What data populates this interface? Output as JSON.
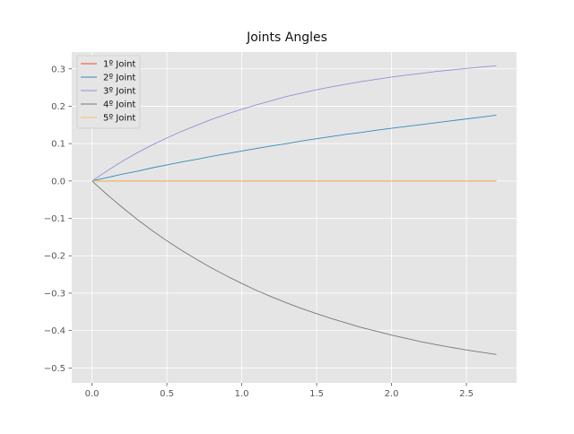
{
  "chart_data": {
    "type": "line",
    "title": "Joints Angles",
    "xlabel": "",
    "ylabel": "",
    "xlim": [
      -0.135,
      2.835
    ],
    "ylim": [
      -0.54,
      0.345
    ],
    "xticks": [
      0.0,
      0.5,
      1.0,
      1.5,
      2.0,
      2.5
    ],
    "xtick_labels": [
      "0.0",
      "0.5",
      "1.0",
      "1.5",
      "2.0",
      "2.5"
    ],
    "yticks": [
      -0.5,
      -0.4,
      -0.3,
      -0.2,
      -0.1,
      0.0,
      0.1,
      0.2,
      0.3
    ],
    "ytick_labels": [
      "−0.5",
      "−0.4",
      "−0.3",
      "−0.2",
      "−0.1",
      "0.0",
      "0.1",
      "0.2",
      "0.3"
    ],
    "grid": true,
    "legend_position": "top-left",
    "x": [
      0.0,
      0.1,
      0.2,
      0.3,
      0.4,
      0.5,
      0.6,
      0.7,
      0.8,
      0.9,
      1.0,
      1.1,
      1.2,
      1.3,
      1.4,
      1.5,
      1.6,
      1.7,
      1.8,
      1.9,
      2.0,
      2.1,
      2.2,
      2.3,
      2.4,
      2.5,
      2.6,
      2.7
    ],
    "series": [
      {
        "name": "1º Joint",
        "color": "#e24a33",
        "values": [
          0.0,
          0.0,
          0.0,
          0.0,
          0.0,
          0.0,
          0.0,
          0.0,
          0.0,
          0.0,
          0.0,
          0.0,
          0.0,
          0.0,
          0.0,
          0.0,
          0.0,
          0.0,
          0.0,
          0.0,
          0.0,
          0.0,
          0.0,
          0.0,
          0.0,
          0.0,
          0.0,
          0.0
        ]
      },
      {
        "name": "2º Joint",
        "color": "#348abd",
        "values": [
          0.0,
          0.009,
          0.018,
          0.026,
          0.035,
          0.043,
          0.051,
          0.058,
          0.066,
          0.073,
          0.08,
          0.087,
          0.094,
          0.1,
          0.107,
          0.113,
          0.119,
          0.125,
          0.13,
          0.136,
          0.141,
          0.146,
          0.151,
          0.156,
          0.161,
          0.166,
          0.171,
          0.176
        ]
      },
      {
        "name": "3º Joint",
        "color": "#988ed5",
        "values": [
          0.0,
          0.027,
          0.052,
          0.075,
          0.096,
          0.115,
          0.133,
          0.149,
          0.165,
          0.179,
          0.192,
          0.204,
          0.215,
          0.226,
          0.235,
          0.244,
          0.252,
          0.259,
          0.266,
          0.272,
          0.278,
          0.283,
          0.288,
          0.293,
          0.297,
          0.301,
          0.305,
          0.308
        ]
      },
      {
        "name": "4º Joint",
        "color": "#777777",
        "values": [
          0.0,
          -0.036,
          -0.07,
          -0.102,
          -0.132,
          -0.16,
          -0.186,
          -0.21,
          -0.233,
          -0.254,
          -0.274,
          -0.293,
          -0.31,
          -0.326,
          -0.341,
          -0.355,
          -0.368,
          -0.38,
          -0.392,
          -0.402,
          -0.412,
          -0.421,
          -0.43,
          -0.438,
          -0.445,
          -0.452,
          -0.458,
          -0.464
        ]
      },
      {
        "name": "5º Joint",
        "color": "#fbc15e",
        "values": [
          0.0,
          0.0,
          0.0,
          0.0,
          0.0,
          0.0,
          0.0,
          0.0,
          0.0,
          0.0,
          0.0,
          0.0,
          0.0,
          0.0,
          0.0,
          0.0,
          0.0,
          0.0,
          0.0,
          0.0,
          0.0,
          0.0,
          0.0,
          0.0,
          0.0,
          0.0,
          0.0,
          0.0
        ]
      }
    ],
    "colors": {
      "plot_background": "#e5e5e5",
      "grid": "#ffffff",
      "tick_text": "#555555",
      "title_text": "#111111"
    }
  }
}
